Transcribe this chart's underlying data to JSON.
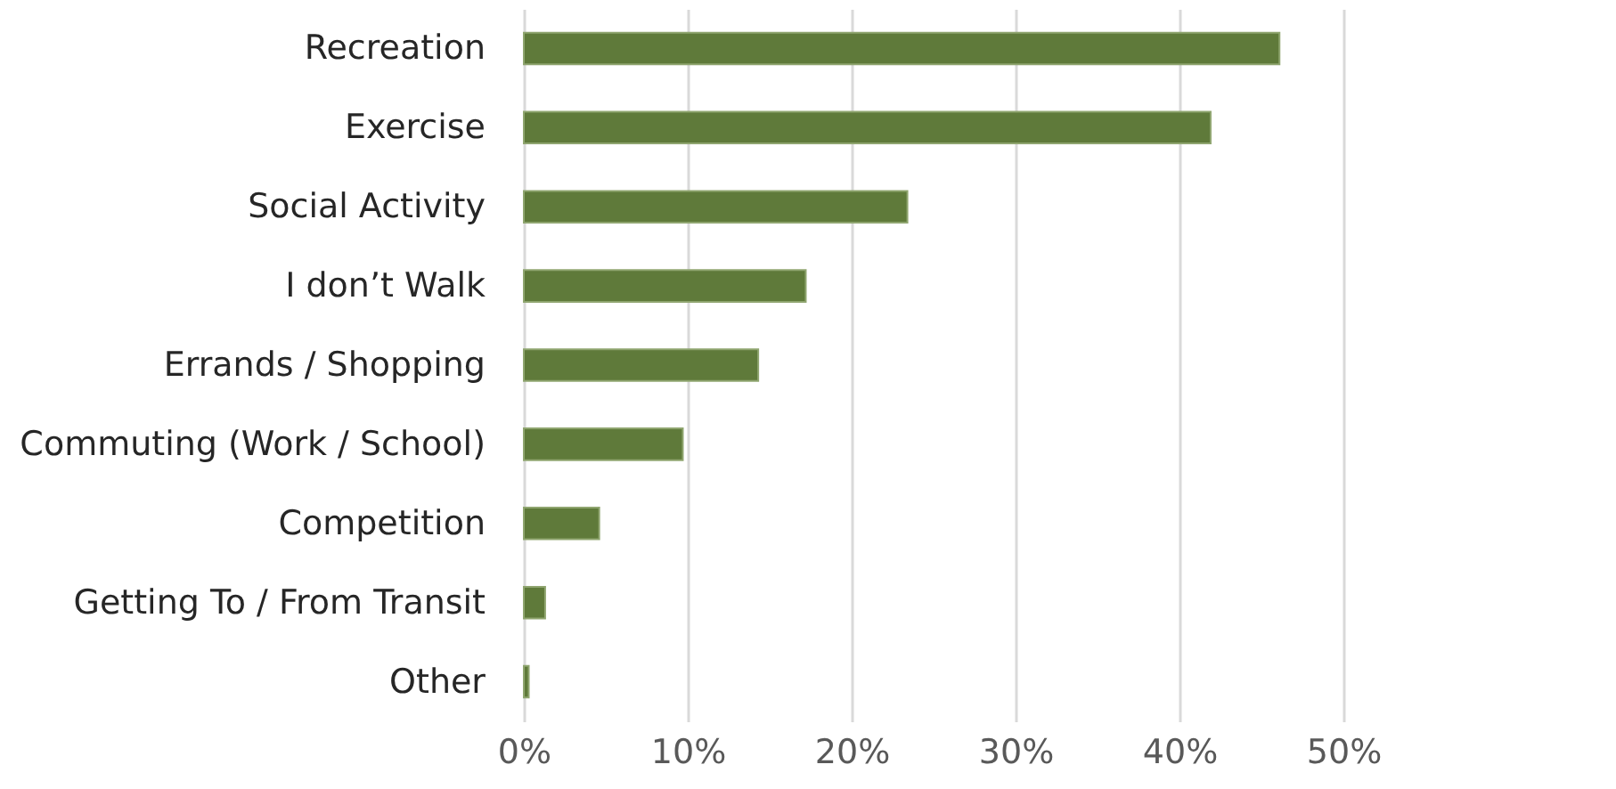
{
  "chart_data": {
    "type": "bar",
    "orientation": "horizontal",
    "categories": [
      "Recreation",
      "Exercise",
      "Social Activity",
      "I don’t Walk",
      "Errands / Shopping",
      "Commuting (Work / School)",
      "Competition",
      "Getting To / From Transit",
      "Other"
    ],
    "values": [
      46.1,
      41.9,
      23.4,
      17.2,
      14.3,
      9.7,
      4.6,
      1.3,
      0.3
    ],
    "color": "#5f7a3a",
    "xlim": [
      0,
      50
    ],
    "xticks": [
      {
        "value": 0,
        "label": "0%"
      },
      {
        "value": 10,
        "label": "10%"
      },
      {
        "value": 20,
        "label": "20%"
      },
      {
        "value": 30,
        "label": "30%"
      },
      {
        "value": 40,
        "label": "40%"
      },
      {
        "value": 50,
        "label": "50%"
      }
    ],
    "grid": "x"
  }
}
